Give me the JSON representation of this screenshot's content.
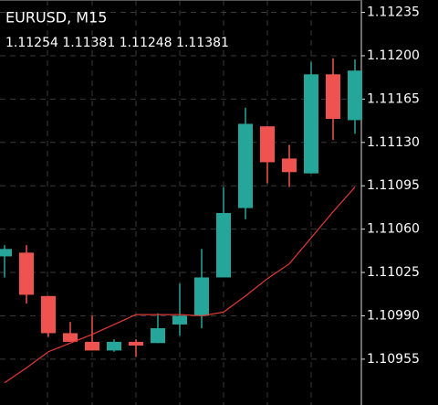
{
  "chart_data": {
    "type": "candlestick",
    "title": "EURUSD, M15",
    "subtitle": "1.11254 1.11381 1.11248 1.11381",
    "categories": [
      null,
      null,
      null,
      null,
      null,
      null,
      null,
      null,
      null,
      null,
      null,
      null,
      null,
      null,
      null,
      null,
      null
    ],
    "open": [
      1.11038,
      1.11041,
      1.11006,
      1.10976,
      1.10969,
      1.10962,
      1.10969,
      1.10968,
      1.10983,
      1.1099,
      1.11021,
      1.11077,
      1.11143,
      1.11117,
      1.11105,
      1.11185,
      1.11148
    ],
    "high": [
      1.11047,
      1.11047,
      1.11006,
      1.10985,
      1.1099,
      1.10971,
      1.10971,
      1.10992,
      1.11016,
      1.11044,
      1.11094,
      1.11158,
      1.11143,
      1.11128,
      1.11195,
      1.11198,
      1.11197
    ],
    "low": [
      1.11021,
      1.11,
      1.10973,
      1.10969,
      1.10962,
      1.10961,
      1.10957,
      1.10968,
      1.10974,
      1.1098,
      1.11021,
      1.11068,
      1.11097,
      1.11094,
      1.11105,
      1.11132,
      1.11137
    ],
    "close": [
      1.11044,
      1.11007,
      1.10976,
      1.10969,
      1.10962,
      1.10969,
      1.10966,
      1.1098,
      1.1099,
      1.11021,
      1.11073,
      1.11145,
      1.11114,
      1.11106,
      1.11185,
      1.11149,
      1.11188
    ],
    "up_color": "#26a69a",
    "down_color": "#ef5350",
    "ma": {
      "color": "#e53935",
      "values": [
        1.10936,
        1.10948,
        1.10961,
        1.10968,
        1.10975,
        1.10983,
        1.10991,
        1.10991,
        1.10991,
        1.1099,
        1.10993,
        1.11006,
        1.1102,
        1.11032,
        1.11053,
        1.11074,
        1.11094
      ]
    },
    "ylim": [
      1.10918,
      1.11245
    ],
    "yticks": [
      1.11235,
      {
        "value": 1.112,
        "label": "1.11200"
      },
      1.11165,
      {
        "value": 1.1113,
        "label": "1.11130"
      },
      1.11095,
      {
        "value": 1.1106,
        "label": "1.11060"
      },
      1.11025,
      {
        "value": 1.1099,
        "label": "1.10990"
      },
      1.10955
    ],
    "grid": true
  }
}
